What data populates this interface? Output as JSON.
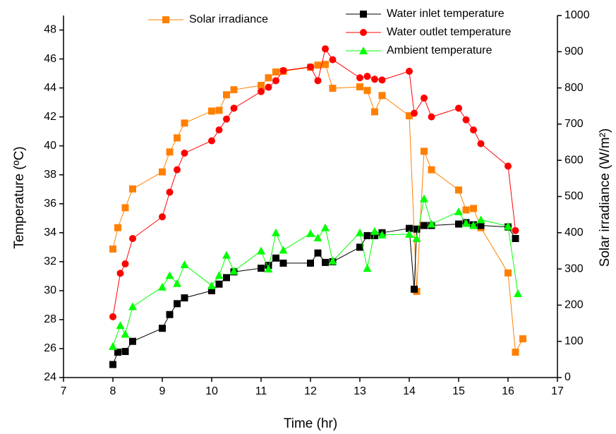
{
  "chart_data": {
    "type": "line",
    "xlabel": "Time (hr)",
    "ylabel": "Temperature (ºC)",
    "y2label": "Solar irradiance (W/m²)",
    "xlim": [
      7,
      17
    ],
    "xticks": [
      7,
      8,
      9,
      10,
      11,
      12,
      13,
      14,
      15,
      16,
      17
    ],
    "ylim": [
      24,
      49
    ],
    "yticks": [
      24,
      26,
      28,
      30,
      32,
      34,
      36,
      38,
      40,
      42,
      44,
      46,
      48
    ],
    "y2lim": [
      0,
      1000
    ],
    "y2ticks": [
      0,
      100,
      200,
      300,
      400,
      500,
      600,
      700,
      800,
      900,
      1000
    ],
    "series": [
      {
        "name": "Solar irradiance",
        "color": "#ff8000",
        "marker": "square",
        "axis": "y2",
        "x": [
          8.0,
          8.1,
          8.25,
          8.4,
          9.0,
          9.15,
          9.3,
          9.45,
          10.0,
          10.15,
          10.3,
          10.45,
          11.0,
          11.15,
          11.3,
          11.45,
          12.0,
          12.15,
          12.3,
          12.45,
          13.0,
          13.15,
          13.3,
          13.45,
          14.0,
          14.15,
          14.3,
          14.45,
          15.0,
          15.15,
          15.3,
          15.45,
          16.0,
          16.15,
          16.3
        ],
        "values": [
          355,
          414,
          469,
          521,
          568,
          623,
          662,
          703,
          736,
          738,
          781,
          795,
          807,
          828,
          844,
          846,
          857,
          863,
          865,
          799,
          803,
          793,
          734,
          779,
          723,
          238,
          625,
          574,
          518,
          463,
          467,
          414,
          289,
          70,
          107
        ]
      },
      {
        "name": "Water inlet temperature",
        "color": "#000000",
        "marker": "square",
        "x": [
          8.0,
          8.1,
          8.25,
          8.4,
          9.0,
          9.15,
          9.3,
          9.45,
          10.0,
          10.15,
          10.3,
          10.45,
          11.0,
          11.15,
          11.3,
          11.45,
          12.0,
          12.15,
          12.3,
          12.45,
          13.0,
          13.15,
          13.3,
          13.45,
          14.0,
          14.1,
          14.15,
          14.3,
          14.45,
          15.0,
          15.15,
          15.3,
          15.45,
          16.0,
          16.15
        ],
        "values": [
          24.9,
          25.75,
          25.8,
          26.5,
          27.4,
          28.35,
          29.1,
          29.5,
          30.0,
          30.45,
          30.9,
          31.3,
          31.55,
          31.75,
          32.25,
          31.9,
          31.9,
          32.6,
          31.95,
          32.0,
          33.0,
          33.8,
          33.8,
          34.0,
          34.3,
          30.1,
          34.25,
          34.5,
          34.5,
          34.6,
          34.7,
          34.55,
          34.5,
          34.4,
          33.6
        ]
      },
      {
        "name": "Water outlet temperature",
        "color": "#ff0000",
        "marker": "circle",
        "x": [
          8.0,
          8.15,
          8.25,
          8.4,
          9.0,
          9.15,
          9.3,
          9.45,
          10.0,
          10.15,
          10.3,
          10.45,
          11.0,
          11.15,
          11.3,
          11.45,
          12.0,
          12.15,
          12.3,
          12.45,
          13.0,
          13.15,
          13.3,
          13.45,
          14.0,
          14.1,
          14.3,
          14.45,
          15.0,
          15.15,
          15.3,
          15.45,
          16.0,
          16.15
        ],
        "values": [
          28.2,
          31.2,
          31.85,
          33.6,
          35.1,
          36.8,
          38.35,
          39.5,
          40.35,
          41.1,
          41.85,
          42.6,
          43.75,
          44.05,
          44.5,
          45.2,
          45.45,
          44.5,
          46.7,
          45.95,
          44.7,
          44.8,
          44.6,
          44.55,
          45.15,
          42.25,
          43.3,
          42.0,
          42.6,
          41.8,
          41.1,
          40.15,
          38.6,
          34.15
        ]
      },
      {
        "name": "Ambient temperature",
        "color": "#00ff00",
        "marker": "triangle",
        "x": [
          8.0,
          8.15,
          8.25,
          8.4,
          9.0,
          9.15,
          9.3,
          9.45,
          10.0,
          10.15,
          10.3,
          10.45,
          11.0,
          11.15,
          11.3,
          11.45,
          12.0,
          12.15,
          12.3,
          12.45,
          13.0,
          13.15,
          13.3,
          13.45,
          14.0,
          14.15,
          14.3,
          14.45,
          15.0,
          15.15,
          15.3,
          15.45,
          16.0,
          16.2
        ],
        "values": [
          26.15,
          27.6,
          27.0,
          28.9,
          30.25,
          31.05,
          30.5,
          31.8,
          30.35,
          31.05,
          32.45,
          31.35,
          32.75,
          31.5,
          34.0,
          32.8,
          33.95,
          33.65,
          34.35,
          32.05,
          34.0,
          31.55,
          34.1,
          33.85,
          33.9,
          33.6,
          36.35,
          34.6,
          35.45,
          34.65,
          34.5,
          34.9,
          34.45,
          29.8
        ]
      }
    ]
  }
}
